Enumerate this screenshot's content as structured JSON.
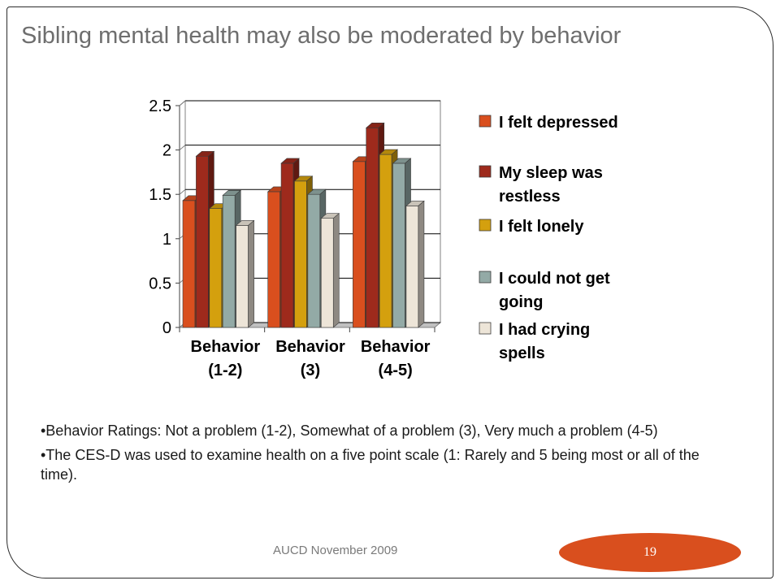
{
  "slide": {
    "title": "Sibling mental health may also be moderated by behavior",
    "bullets": [
      "•Behavior Ratings: Not a problem (1-2), Somewhat of a problem (3), Very much a problem (4-5)",
      "•The CES-D was used to examine health on a five point scale (1: Rarely and 5 being most or all of the time)."
    ],
    "footer": "AUCD November 2009",
    "page_number": "19",
    "page_badge_color": "#d94f1e"
  },
  "chart_data": {
    "type": "bar",
    "title": "",
    "xlabel": "",
    "ylabel": "",
    "ylim": [
      0,
      2.5
    ],
    "yticks": [
      "0",
      "0.5",
      "1",
      "1.5",
      "2",
      "2.5"
    ],
    "grid": true,
    "legend_position": "right",
    "categories": [
      [
        "Behavior",
        "(1-2)"
      ],
      [
        "Behavior",
        "(3)"
      ],
      [
        "Behavior",
        "(4-5)"
      ]
    ],
    "series": [
      {
        "name": "I felt depressed",
        "color": "#d94f1e",
        "values": [
          1.43,
          1.53,
          1.87
        ]
      },
      {
        "name": "My sleep was restless",
        "color": "#9e2a1c",
        "values": [
          1.93,
          1.85,
          2.25
        ]
      },
      {
        "name": "I felt lonely",
        "color": "#d4a00e",
        "values": [
          1.34,
          1.65,
          1.95
        ]
      },
      {
        "name": "I could not get going",
        "color": "#93aaa6",
        "values": [
          1.49,
          1.5,
          1.85
        ]
      },
      {
        "name": "I had crying spells",
        "color": "#ede5d8",
        "values": [
          1.15,
          1.23,
          1.37
        ]
      }
    ]
  }
}
